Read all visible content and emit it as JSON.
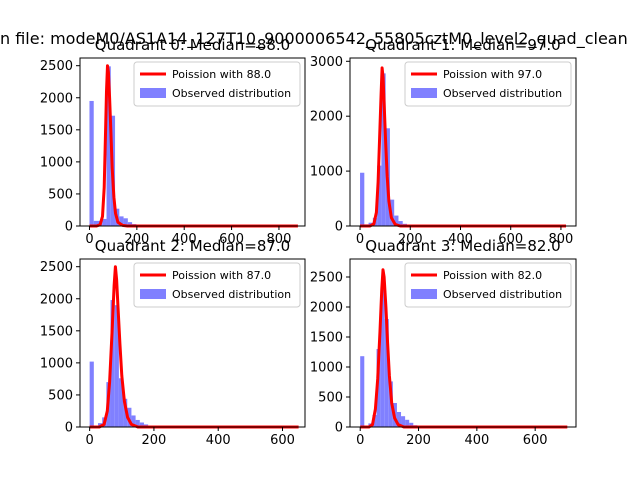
{
  "figure": {
    "suptitle": "n file: modeM0/AS1A14_127T10_9000006542_55805cztM0_level2_quad_clean"
  },
  "style": {
    "line_color": "#ff0000",
    "bar_color": "#8080ff",
    "axis_color": "#000000",
    "background": "#ffffff"
  },
  "chart_data": [
    {
      "type": "bar",
      "title": "Quadrant 0: Median=88.0",
      "xlim": [
        -40,
        910
      ],
      "ylim": [
        0,
        2620
      ],
      "xticks": [
        0,
        200,
        400,
        600,
        800
      ],
      "yticks": [
        0,
        500,
        1000,
        1500,
        2000,
        2500
      ],
      "legend_position": "top-right",
      "legend": [
        "Poission with 88.0",
        "Observed distribution"
      ],
      "bars": {
        "x": [
          0,
          18,
          36,
          54,
          72,
          90,
          108,
          126,
          144,
          162,
          180,
          198
        ],
        "width": 18,
        "values": [
          1950,
          80,
          80,
          110,
          2490,
          1720,
          270,
          150,
          120,
          60,
          30,
          12
        ]
      },
      "curve": {
        "x": [
          0,
          30,
          45,
          55,
          62,
          68,
          72,
          76,
          80,
          85,
          90,
          96,
          103,
          110,
          120,
          140,
          160,
          200,
          400,
          600,
          800,
          880
        ],
        "y": [
          0,
          0,
          20,
          150,
          600,
          1500,
          2100,
          2500,
          2400,
          2000,
          1500,
          900,
          450,
          200,
          60,
          10,
          0,
          0,
          0,
          0,
          0,
          0
        ]
      }
    },
    {
      "type": "bar",
      "title": "Quadrant 1: Median=97.0",
      "xlim": [
        -40,
        860
      ],
      "ylim": [
        0,
        3060
      ],
      "xticks": [
        0,
        200,
        400,
        600,
        800
      ],
      "yticks": [
        0,
        1000,
        2000,
        3000
      ],
      "legend_position": "top-right",
      "legend": [
        "Poission with 97.0",
        "Observed distribution"
      ],
      "bars": {
        "x": [
          0,
          17,
          34,
          51,
          68,
          85,
          102,
          119,
          136,
          153,
          170
        ],
        "width": 17,
        "values": [
          970,
          30,
          60,
          150,
          1100,
          2780,
          1780,
          480,
          190,
          90,
          40
        ]
      },
      "curve": {
        "x": [
          0,
          40,
          55,
          65,
          72,
          78,
          84,
          88,
          92,
          96,
          102,
          108,
          115,
          125,
          140,
          160,
          200,
          400,
          600,
          820
        ],
        "y": [
          0,
          0,
          40,
          250,
          800,
          1600,
          2400,
          2880,
          2700,
          2200,
          1500,
          900,
          450,
          150,
          30,
          0,
          0,
          0,
          0,
          0
        ]
      }
    },
    {
      "type": "bar",
      "title": "Quadrant 2: Median=87.0",
      "xlim": [
        -30,
        670
      ],
      "ylim": [
        0,
        2620
      ],
      "xticks": [
        0,
        200,
        400,
        600
      ],
      "yticks": [
        0,
        500,
        1000,
        1500,
        2000,
        2500
      ],
      "legend_position": "top-right",
      "legend": [
        "Poission with 87.0",
        "Observed distribution"
      ],
      "bars": {
        "x": [
          0,
          13,
          26,
          39,
          52,
          65,
          78,
          91,
          104,
          117,
          130,
          143,
          156,
          169,
          182
        ],
        "width": 13,
        "values": [
          1020,
          20,
          60,
          150,
          700,
          1980,
          1900,
          760,
          440,
          300,
          180,
          110,
          70,
          40,
          20
        ]
      },
      "curve": {
        "x": [
          0,
          30,
          45,
          55,
          62,
          70,
          76,
          80,
          84,
          88,
          94,
          100,
          108,
          118,
          130,
          150,
          200,
          400,
          650
        ],
        "y": [
          0,
          0,
          40,
          250,
          700,
          1500,
          2200,
          2500,
          2300,
          1900,
          1300,
          800,
          400,
          150,
          40,
          0,
          0,
          0,
          0
        ]
      }
    },
    {
      "type": "bar",
      "title": "Quadrant 3: Median=82.0",
      "xlim": [
        -35,
        740
      ],
      "ylim": [
        0,
        2800
      ],
      "xticks": [
        0,
        200,
        400,
        600
      ],
      "yticks": [
        0,
        500,
        1000,
        1500,
        2000,
        2500
      ],
      "legend_position": "top-right",
      "legend": [
        "Poission with 82.0",
        "Observed distribution"
      ],
      "bars": {
        "x": [
          0,
          14,
          28,
          42,
          56,
          70,
          84,
          98,
          112,
          126,
          140,
          154,
          168,
          182
        ],
        "width": 14,
        "values": [
          1180,
          20,
          60,
          200,
          1300,
          2300,
          1800,
          760,
          400,
          250,
          180,
          120,
          70,
          30
        ]
      },
      "curve": {
        "x": [
          0,
          30,
          42,
          52,
          60,
          68,
          74,
          78,
          82,
          88,
          94,
          100,
          108,
          118,
          130,
          150,
          200,
          400,
          600,
          710
        ],
        "y": [
          0,
          0,
          40,
          300,
          800,
          1600,
          2300,
          2620,
          2500,
          2000,
          1400,
          850,
          400,
          150,
          40,
          0,
          0,
          0,
          0,
          0
        ]
      }
    }
  ]
}
